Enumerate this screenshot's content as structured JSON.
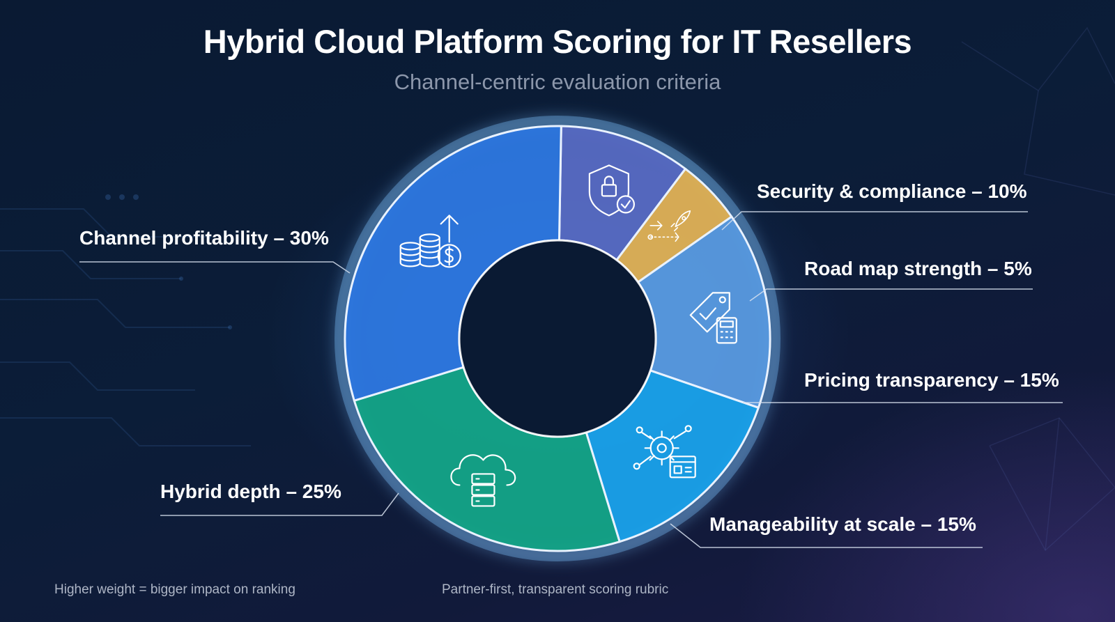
{
  "header": {
    "title": "Hybrid Cloud Platform Scoring for IT Resellers",
    "subtitle": "Channel-centric evaluation criteria"
  },
  "chart_data": {
    "type": "pie",
    "donut": true,
    "unit": "%",
    "categories": [
      "Security & compliance",
      "Road map strength",
      "Pricing transparency",
      "Manageability at scale",
      "Hybrid depth",
      "Channel profitability"
    ],
    "values": [
      10,
      5,
      15,
      15,
      25,
      30
    ],
    "labels": [
      "Security & compliance – 10%",
      "Road map strength – 5%",
      "Pricing transparency – 15%",
      "Manageability at scale – 15%",
      "Hybrid depth – 25%",
      "Channel profitability – 30%"
    ],
    "colors": [
      "#5a6ec8",
      "#e7b657",
      "#5b9ee6",
      "#1aa6f0",
      "#14a98a",
      "#2f7be6"
    ],
    "icons": [
      "shield-lock-icon",
      "roadmap-rocket-icon",
      "price-tag-calculator-icon",
      "gear-network-icon",
      "cloud-server-icon",
      "coins-growth-icon"
    ],
    "legend": "none",
    "grid": false
  },
  "footer": {
    "left_note": "Higher weight = bigger impact on ranking",
    "center_note": "Partner-first, transparent scoring rubric"
  }
}
